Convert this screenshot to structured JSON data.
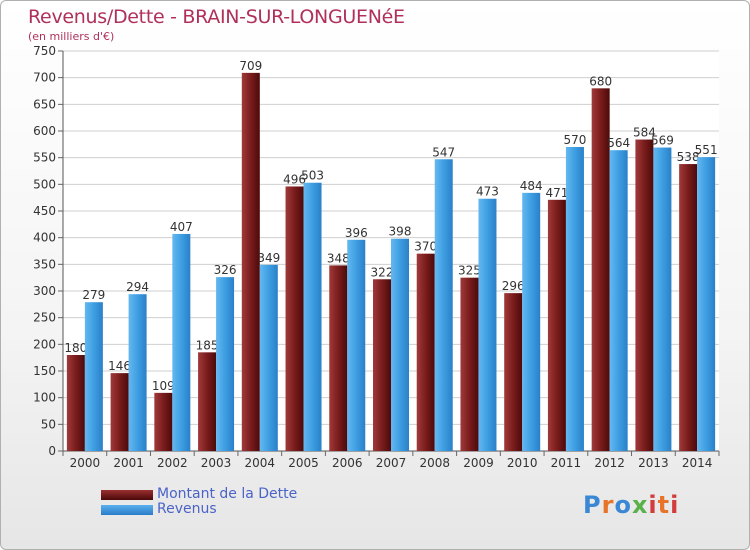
{
  "chart_data": {
    "type": "bar",
    "title": "Revenus/Dette - BRAIN-SUR-LONGUENéE",
    "subtitle": "(en milliers d'€)",
    "categories": [
      "2000",
      "2001",
      "2002",
      "2003",
      "2004",
      "2005",
      "2006",
      "2007",
      "2008",
      "2009",
      "2010",
      "2011",
      "2012",
      "2013",
      "2014"
    ],
    "series": [
      {
        "name": "Montant de la Dette",
        "color": "#7a1a1a",
        "values": [
          180,
          146,
          109,
          185,
          709,
          496,
          348,
          322,
          370,
          325,
          296,
          471,
          680,
          584,
          538
        ]
      },
      {
        "name": "Revenus",
        "color": "#3a9ae0",
        "values": [
          279,
          294,
          407,
          326,
          349,
          503,
          396,
          398,
          547,
          473,
          484,
          570,
          564,
          569,
          551
        ]
      }
    ],
    "ylim": [
      0,
      750
    ],
    "yticks": [
      0,
      50,
      100,
      150,
      200,
      250,
      300,
      350,
      400,
      450,
      500,
      550,
      600,
      650,
      700,
      750
    ],
    "grid": true,
    "legend": "bottom-left"
  },
  "brand": {
    "text": "Proxiti"
  }
}
